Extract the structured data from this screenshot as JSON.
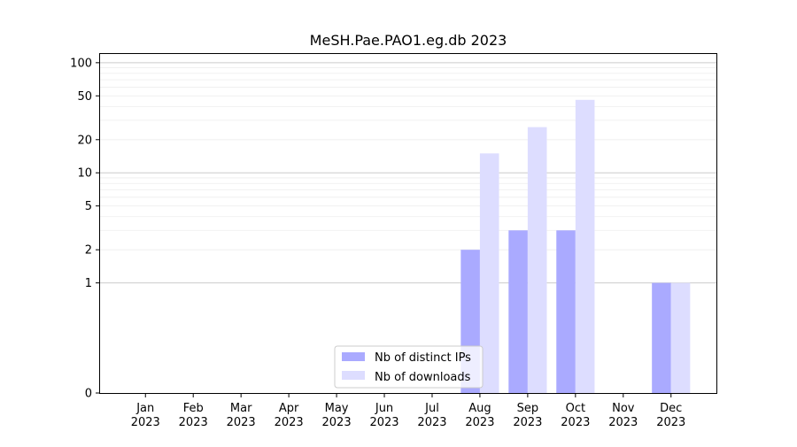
{
  "chart_data": {
    "type": "bar",
    "title": "MeSH.Pae.PAO1.eg.db 2023",
    "xlabel": "",
    "ylabel": "",
    "y_scale": "symlog",
    "ylim": [
      0,
      120
    ],
    "y_ticks": [
      0,
      1,
      2,
      5,
      10,
      20,
      50,
      100
    ],
    "y_tick_labels": [
      "0",
      "1",
      "2",
      "5",
      "10",
      "20",
      "50",
      "100"
    ],
    "grid": "horizontal",
    "legend_position": "bottom-center",
    "categories": [
      "Jan\n2023",
      "Feb\n2023",
      "Mar\n2023",
      "Apr\n2023",
      "May\n2023",
      "Jun\n2023",
      "Jul\n2023",
      "Aug\n2023",
      "Sep\n2023",
      "Oct\n2023",
      "Nov\n2023",
      "Dec\n2023"
    ],
    "series": [
      {
        "name": "Nb of distinct IPs",
        "color": "#aaaaff",
        "values": [
          0,
          0,
          0,
          0,
          0,
          0,
          0,
          2,
          3,
          3,
          0,
          1
        ]
      },
      {
        "name": "Nb of downloads",
        "color": "#ddddff",
        "values": [
          0,
          0,
          0,
          0,
          0,
          0,
          0,
          15,
          26,
          46,
          0,
          1
        ]
      }
    ]
  }
}
